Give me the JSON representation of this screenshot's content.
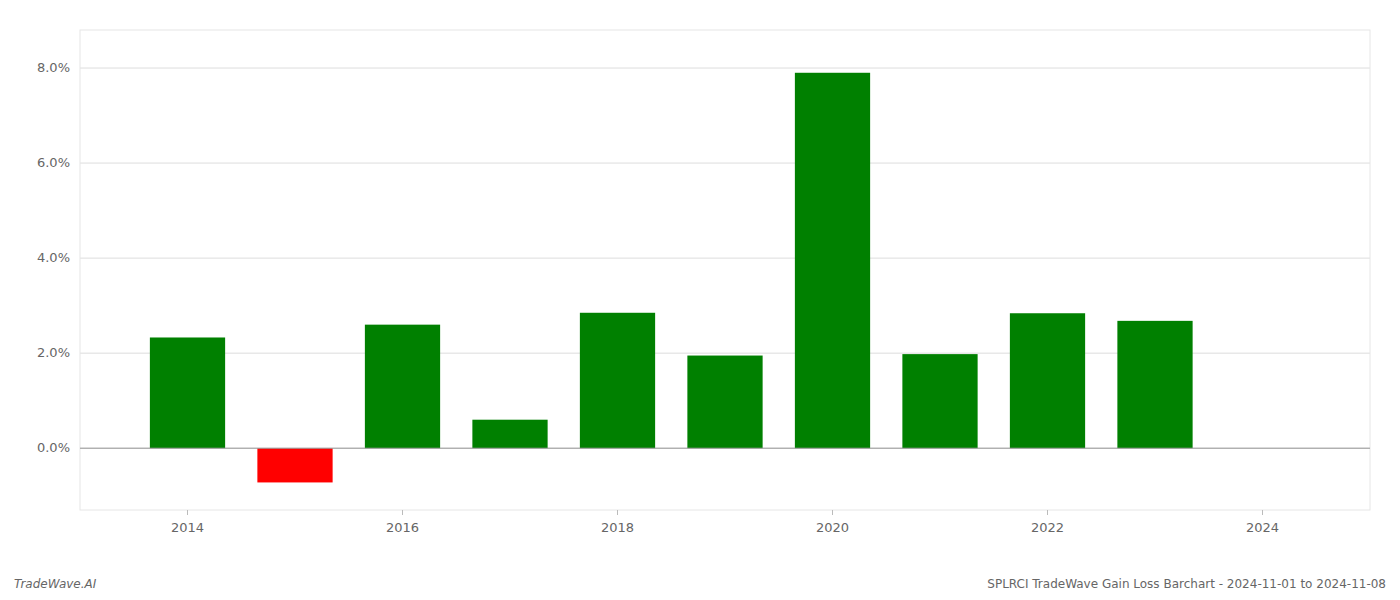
{
  "chart_data": {
    "type": "bar",
    "x": [
      2014,
      2015,
      2016,
      2017,
      2018,
      2019,
      2020,
      2021,
      2022,
      2023
    ],
    "values": [
      0.0233,
      -0.0072,
      0.026,
      0.006,
      0.0285,
      0.0195,
      0.079,
      0.0198,
      0.0284,
      0.0268
    ],
    "colors": [
      "#008000",
      "#ff0000",
      "#008000",
      "#008000",
      "#008000",
      "#008000",
      "#008000",
      "#008000",
      "#008000",
      "#008000"
    ],
    "xlim": [
      2013,
      2025
    ],
    "xticks": [
      2014,
      2016,
      2018,
      2020,
      2022,
      2024
    ],
    "ylim": [
      -0.013,
      0.088
    ],
    "yticks": [
      {
        "value": 0.0,
        "label": "0.0%"
      },
      {
        "value": 0.02,
        "label": "2.0%"
      },
      {
        "value": 0.04,
        "label": "4.0%"
      },
      {
        "value": 0.06,
        "label": "6.0%"
      },
      {
        "value": 0.08,
        "label": "8.0%"
      }
    ],
    "grid": true,
    "annotations": [
      "TradeWave.AI",
      "SPLRCI TradeWave Gain Loss Barchart - 2024-11-01 to 2024-11-08"
    ]
  }
}
